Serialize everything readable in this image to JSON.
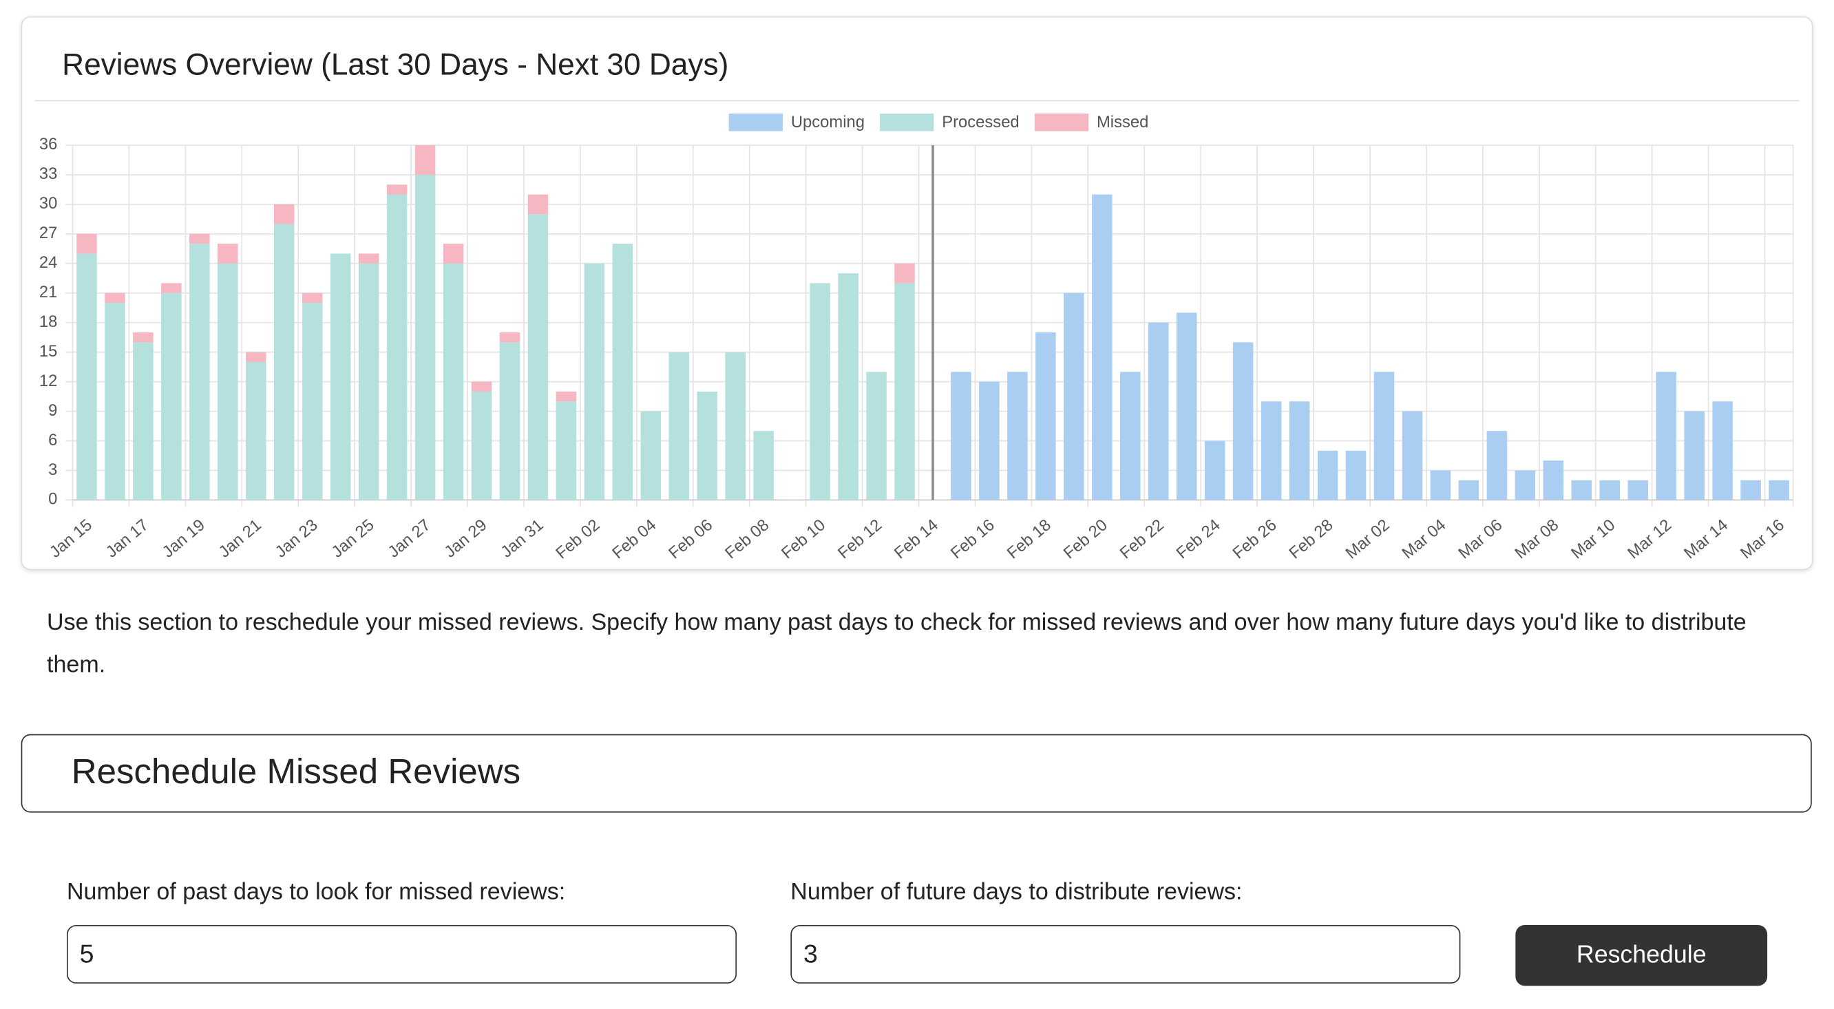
{
  "chart_data": {
    "type": "bar",
    "stacked": true,
    "title": "Reviews Overview (Last 30 Days - Next 30 Days)",
    "legend": "top",
    "grid": true,
    "categories": [
      "Jan 15",
      null,
      "Jan 17",
      null,
      "Jan 19",
      null,
      "Jan 21",
      null,
      "Jan 23",
      null,
      "Jan 25",
      null,
      "Jan 27",
      null,
      "Jan 29",
      null,
      "Jan 31",
      null,
      "Feb 02",
      null,
      "Feb 04",
      null,
      "Feb 06",
      null,
      "Feb 08",
      null,
      "Feb 10",
      null,
      "Feb 12",
      null,
      "Feb 14",
      null,
      "Feb 16",
      null,
      "Feb 18",
      null,
      "Feb 20",
      null,
      "Feb 22",
      null,
      "Feb 24",
      null,
      "Feb 26",
      null,
      "Feb 28",
      null,
      "Mar 02",
      null,
      "Mar 04",
      null,
      "Mar 06",
      null,
      "Mar 08",
      null,
      "Mar 10",
      null,
      "Mar 12",
      null,
      "Mar 14",
      null,
      "Mar 16"
    ],
    "series": [
      {
        "name": "Upcoming",
        "color": "#aacdf2",
        "values": [
          null,
          null,
          null,
          null,
          null,
          null,
          null,
          null,
          null,
          null,
          null,
          null,
          null,
          null,
          null,
          null,
          null,
          null,
          null,
          null,
          null,
          null,
          null,
          null,
          null,
          null,
          null,
          null,
          null,
          null,
          null,
          13,
          12,
          13,
          17,
          21,
          31,
          13,
          18,
          19,
          6,
          16,
          10,
          10,
          5,
          5,
          13,
          9,
          3,
          2,
          7,
          3,
          4,
          2,
          2,
          2,
          13,
          9,
          10,
          2,
          2
        ]
      },
      {
        "name": "Processed",
        "color": "#b4e0de",
        "values": [
          25,
          20,
          16,
          21,
          26,
          24,
          14,
          28,
          20,
          25,
          24,
          31,
          33,
          24,
          11,
          16,
          29,
          10,
          24,
          26,
          9,
          15,
          11,
          15,
          7,
          0,
          22,
          23,
          13,
          22,
          null,
          null,
          null,
          null,
          null,
          null,
          null,
          null,
          null,
          null,
          null,
          null,
          null,
          null,
          null,
          null,
          null,
          null,
          null,
          null,
          null,
          null,
          null,
          null,
          null,
          null,
          null,
          null,
          null,
          null,
          null
        ]
      },
      {
        "name": "Missed",
        "color": "#f6b6c2",
        "values": [
          2,
          1,
          1,
          1,
          1,
          2,
          1,
          2,
          1,
          0,
          1,
          1,
          3,
          2,
          1,
          1,
          2,
          1,
          0,
          0,
          0,
          0,
          0,
          0,
          0,
          0,
          0,
          0,
          0,
          2,
          null,
          null,
          null,
          null,
          null,
          null,
          null,
          null,
          null,
          null,
          null,
          null,
          null,
          null,
          null,
          null,
          null,
          null,
          null,
          null,
          null,
          null,
          null,
          null,
          null,
          null,
          null,
          null,
          null,
          null,
          null
        ]
      }
    ],
    "ylim": [
      0,
      36
    ],
    "yticks": [
      0,
      3,
      6,
      9,
      12,
      15,
      18,
      21,
      24,
      27,
      30,
      33,
      36
    ]
  },
  "description": "Use this section to reschedule your missed reviews. Specify how many past days to check for missed reviews and over how many future days you'd like to distribute them.",
  "form": {
    "heading": "Reschedule Missed Reviews",
    "past_days_label": "Number of past days to look for missed reviews:",
    "past_days_value": "5",
    "future_days_label": "Number of future days to distribute reviews:",
    "future_days_value": "3",
    "button": "Reschedule"
  }
}
